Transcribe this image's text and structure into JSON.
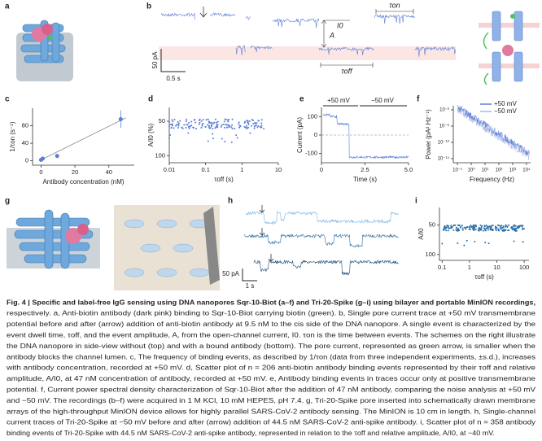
{
  "panels": {
    "a": {
      "label": "a"
    },
    "b": {
      "label": "b",
      "i0": "I0",
      "amplitude": "A",
      "tau_on": "τon",
      "tau_off": "τoff",
      "scale_current": "50 pA",
      "scale_time": "0.5 s"
    },
    "c": {
      "label": "c",
      "y_label": "1/τon (s⁻¹)",
      "x_label": "Antibody concentration (nM)",
      "xlim": [
        -5,
        55
      ],
      "ylim": [
        -10,
        120
      ],
      "xticks": [
        0,
        20,
        40
      ],
      "yticks": [
        0,
        40,
        80
      ],
      "points": [
        {
          "x": 0,
          "y": 2,
          "err": 2
        },
        {
          "x": 1,
          "y": 5,
          "err": 3
        },
        {
          "x": 9.5,
          "y": 11,
          "err": 5
        },
        {
          "x": 47,
          "y": 95,
          "err": 20
        }
      ]
    },
    "d": {
      "label": "d",
      "y_label": "A/I0 (%)",
      "x_label": "τoff (s)",
      "xlim": [
        0.01,
        10
      ],
      "ylim": [
        110,
        30
      ],
      "xticks": [
        0.01,
        0.1,
        1,
        10
      ],
      "yticks": [
        50,
        100
      ],
      "log_x": true
    },
    "e": {
      "label": "e",
      "pos_label": "+50 mV",
      "neg_label": "−50 mV",
      "y_label": "Current (pA)",
      "x_label": "Time (s)",
      "xlim": [
        0,
        5
      ],
      "ylim": [
        -150,
        150
      ],
      "xticks": [
        0,
        2.5,
        {
          "value": 5,
          "label": "5.0"
        }
      ],
      "yticks": [
        100,
        0,
        -100
      ]
    },
    "f": {
      "label": "f",
      "y_label": "Power (pA² Hz⁻¹)",
      "x_label": "Frequency (Hz)",
      "xlim": [
        0.05,
        20000
      ],
      "ylim": [
        1e-15,
        0.1
      ],
      "log_x": true,
      "log_y": true,
      "xticks": [
        {
          "value": 0.1,
          "label": "10⁻¹"
        },
        {
          "value": 1,
          "label": "10⁰"
        },
        {
          "value": 10,
          "label": "10¹"
        },
        {
          "value": 100,
          "label": "10²"
        },
        {
          "value": 1000,
          "label": "10³"
        },
        {
          "value": 10000,
          "label": "10⁴"
        }
      ],
      "yticks": [
        {
          "value": 0.01,
          "label": "10⁻²"
        },
        {
          "value": 1e-06,
          "label": "10⁻⁶"
        },
        {
          "value": 1e-10,
          "label": "10⁻¹⁰"
        },
        {
          "value": 1e-14,
          "label": "10⁻¹⁴"
        }
      ],
      "series": [
        {
          "name": "+50 mV",
          "color": "#5b7fd6"
        },
        {
          "name": "−50 mV",
          "color": "#aab8e6"
        }
      ]
    },
    "g": {
      "label": "g"
    },
    "h": {
      "label": "h",
      "scale_current": "50 pA",
      "scale_time": "1 s"
    },
    "i": {
      "label": "i",
      "y_label": "A/I0",
      "x_label": "τoff (s)",
      "xlim": [
        0.08,
        150
      ],
      "ylim": [
        110,
        20
      ],
      "xticks": [
        0.1,
        1,
        10,
        100
      ],
      "yticks": [
        50,
        100
      ],
      "log_x": true
    }
  },
  "caption": {
    "lines": [
      "Fig. 4 | Specific and label-free IgG sensing using DNA nanopores Sqr-10-Biot (a–f) and Tri-20-Spike (g–i) using bilayer and portable MinION recordings,",
      "respectively. a, Anti-biotin antibody (dark pink) binding to Sqr-10-Biot carrying biotin (green). b, Single pore current trace at +50 mV transmembrane",
      "potential before and after (arrow) addition of anti-biotin antibody at 9.5 nM to the cis side of the DNA nanopore. A single event is characterized by the",
      "event dwell time, τoff, and the event amplitude, A, from the open-channel current, I0. τon is the time between events. The schemes on the right illustrate",
      "the DNA nanopore in side-view without (top) and with a bound antibody (bottom). The pore current, represented as green arrow, is smaller when the",
      "antibody blocks the channel lumen. c, The frequency of binding events, as described by 1/τon (data from three independent experiments, ±s.d.), increases",
      "with antibody concentration, recorded at +50 mV. d, Scatter plot of n = 206 anti-biotin antibody binding events represented by their τoff and relative",
      "amplitude, A/I0, at 47 nM concentration of antibody, recorded at +50 mV. e, Antibody binding events in traces occur only at positive transmembrane",
      "potential. f, Current power spectral density characterization of Sqr-10-Biot after the addition of 47 nM antibody, comparing the noise analysis at +50 mV",
      "and −50 mV. The recordings (b–f) were acquired in 1 M KCl, 10 mM HEPES, pH 7.4. g, Tri-20-Spike pore inserted into schematically drawn membrane",
      "arrays of the high-throughput MinION device allows for highly parallel SARS-CoV-2 antibody sensing. The MinION is 10 cm in length. h, Single-channel",
      "current traces of Tri-20-Spike at −50 mV before and after (arrow) addition of 44.5 nM SARS-CoV-2 anti-spike antibody. i, Scatter plot of n = 358 antibody",
      "binding events of Tri-20-Spike with 44.5 nM SARS-CoV-2 anti-spike antibody, represented in relation to the τoff and relative amplitude, A/I0, at −40 mV."
    ]
  }
}
